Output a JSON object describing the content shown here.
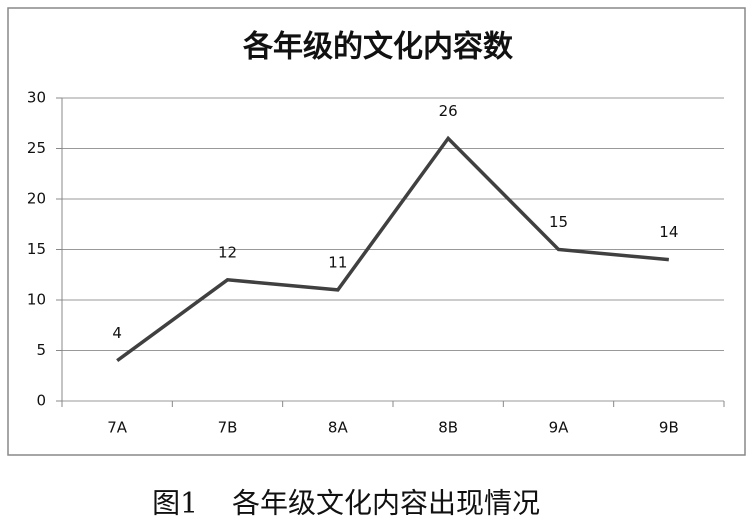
{
  "chart_data": {
    "type": "line",
    "title": "各年级的文化内容数",
    "categories": [
      "7A",
      "7B",
      "8A",
      "8B",
      "9A",
      "9B"
    ],
    "values": [
      4,
      12,
      11,
      26,
      15,
      14
    ],
    "color": "#404040",
    "ylim": [
      0,
      30
    ],
    "yticks": [
      0,
      5,
      10,
      15,
      20,
      25,
      30
    ],
    "grid": true
  },
  "figure_label": "图1",
  "caption": "各年级文化内容出现情况"
}
